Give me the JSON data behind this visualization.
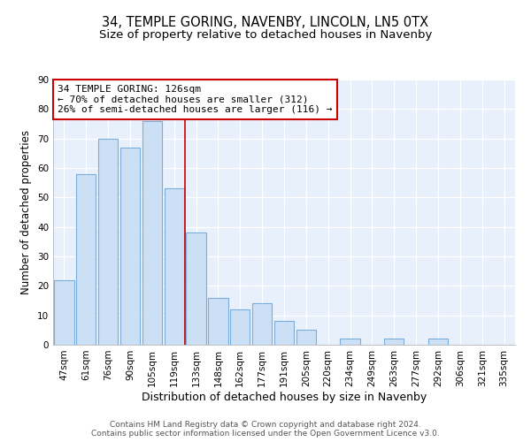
{
  "title": "34, TEMPLE GORING, NAVENBY, LINCOLN, LN5 0TX",
  "subtitle": "Size of property relative to detached houses in Navenby",
  "xlabel": "Distribution of detached houses by size in Navenby",
  "ylabel": "Number of detached properties",
  "bar_labels": [
    "47sqm",
    "61sqm",
    "76sqm",
    "90sqm",
    "105sqm",
    "119sqm",
    "133sqm",
    "148sqm",
    "162sqm",
    "177sqm",
    "191sqm",
    "205sqm",
    "220sqm",
    "234sqm",
    "249sqm",
    "263sqm",
    "277sqm",
    "292sqm",
    "306sqm",
    "321sqm",
    "335sqm"
  ],
  "bar_values": [
    22,
    58,
    70,
    67,
    76,
    53,
    38,
    16,
    12,
    14,
    8,
    5,
    0,
    2,
    0,
    2,
    0,
    2,
    0,
    0,
    0
  ],
  "bar_color": "#cce0f5",
  "bar_edge_color": "#7aaddb",
  "highlight_line_color": "#cc0000",
  "annotation_text": "34 TEMPLE GORING: 126sqm\n← 70% of detached houses are smaller (312)\n26% of semi-detached houses are larger (116) →",
  "annotation_box_color": "#ffffff",
  "annotation_box_edge": "#cc0000",
  "bg_color": "#e8f0fb",
  "ylim": [
    0,
    90
  ],
  "yticks": [
    0,
    10,
    20,
    30,
    40,
    50,
    60,
    70,
    80,
    90
  ],
  "footer_line1": "Contains HM Land Registry data © Crown copyright and database right 2024.",
  "footer_line2": "Contains public sector information licensed under the Open Government Licence v3.0.",
  "title_fontsize": 10.5,
  "subtitle_fontsize": 9.5,
  "xlabel_fontsize": 9,
  "ylabel_fontsize": 8.5,
  "tick_fontsize": 7.5,
  "annotation_fontsize": 8,
  "footer_fontsize": 6.5
}
